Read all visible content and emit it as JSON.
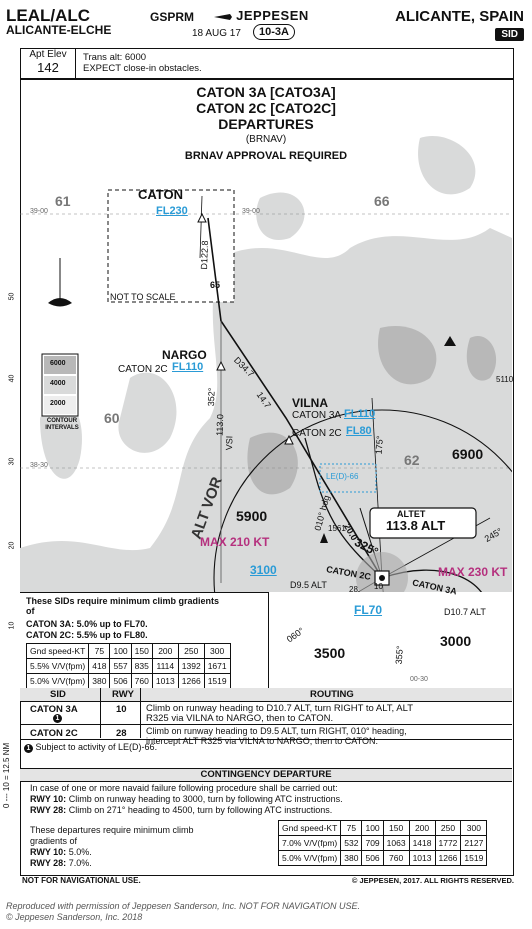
{
  "header": {
    "airport_code": "LEAL/ALC",
    "airport_name": "ALICANTE-ELCHE",
    "ident": "GSPRM",
    "brand": "JEPPESEN",
    "date": "18 AUG 17",
    "chart_index": "10-3A",
    "city": "ALICANTE, SPAIN",
    "chart_type": "SID"
  },
  "top_box": {
    "apt_elev_label": "Apt Elev",
    "apt_elev": "142",
    "trans_alt": "Trans alt: 6000",
    "note": "EXPECT close-in obstacles."
  },
  "title": {
    "line1": "CATON 3A [CATO3A]",
    "line2": "CATON 2C [CATO2C]",
    "line3": "DEPARTURES",
    "line4": "(BRNAV)",
    "line5": "BRNAV APPROVAL REQUIRED"
  },
  "map": {
    "caton": "CATON",
    "caton_fl": "FL230",
    "not_to_scale": "NOT TO SCALE",
    "d122_8": "D122.8",
    "leg65": "65",
    "nargo": "NARGO",
    "nargo_proc": "CATON 2C",
    "nargo_fl": "FL110",
    "r352": "352°",
    "r113": "113.0",
    "vsi": "VSI",
    "d34_7": "D34.7",
    "d14_7": "14.7",
    "vilna": "VILNA",
    "vilna_3a": "CATON 3A",
    "vilna_3a_fl": "FL110",
    "vilna_2c": "CATON 2C",
    "vilna_2c_fl": "FL80",
    "r175": "175°",
    "alt_vor": "ALT VOR",
    "leid": "LE(D)-66",
    "hdg010": "010° hdg",
    "d20": "20.0",
    "r325": "325°",
    "alt_label": "ALTET",
    "alt_freq": "113.8 ALT",
    "max210": "MAX 210 KT",
    "max230": "MAX 230 KT",
    "alt3100": "3100",
    "d95": "D9.5 ALT",
    "catonc2": "CATON 2C",
    "caton3a": "CATON 3A",
    "fl70": "FL70",
    "d107": "D10.7 ALT",
    "r060": "060°",
    "r245": "245°",
    "r355": "355°",
    "rwy10": "10",
    "rwy28": "28",
    "obst1561": "1561",
    "grid_61": "61",
    "grid_66": "66",
    "grid_60": "60",
    "grid_62": "62",
    "elev6900": "6900",
    "elev5900": "5900",
    "elev3000": "3000",
    "elev3500": "3500",
    "peak5110": "5110",
    "lat3900a": "39-00",
    "lat3900b": "39-00",
    "lat3830": "38-30",
    "lon0030": "00-30",
    "legend": [
      "6000",
      "4000",
      "2000"
    ],
    "legend_label": "CONTOUR INTERVALS",
    "lat_ticks": [
      "50",
      "40",
      "30",
      "20",
      "10"
    ]
  },
  "climb": {
    "title_line1": "These SIDs require minimum climb gradients",
    "title_line2": "of",
    "req1": "CATON 3A: 5.0% up to FL70.",
    "req2": "CATON 2C: 5.5% up to FL80.",
    "header": [
      "Gnd speed-KT",
      "75",
      "100",
      "150",
      "200",
      "250",
      "300"
    ],
    "row1": [
      "5.5% V/V(fpm)",
      "418",
      "557",
      "835",
      "1114",
      "1392",
      "1671"
    ],
    "row2": [
      "5.0% V/V(fpm)",
      "380",
      "506",
      "760",
      "1013",
      "1266",
      "1519"
    ]
  },
  "routing": {
    "col_sid": "SID",
    "col_rwy": "RWY",
    "col_routing": "ROUTING",
    "rows": [
      {
        "sid": "CATON 3A",
        "note_mark": "1",
        "rwy": "10",
        "text1": "Climb on runway heading to D10.7 ALT, turn RIGHT to ALT, ALT",
        "text2": "R325 via VILNA to NARGO, then to CATON."
      },
      {
        "sid": "CATON 2C",
        "note_mark": "",
        "rwy": "28",
        "text1": "Climb on runway heading to D9.5 ALT, turn RIGHT, 010° heading,",
        "text2": "intercept ALT R325 via VILNA to NARGO, then to CATON."
      }
    ],
    "footnote": "Subject to activity of LE(D)-66."
  },
  "contingency": {
    "title": "CONTINGENCY DEPARTURE",
    "line1": "In case of one or more navaid failure following procedure shall be carried out:",
    "rwy10_label": "RWY 10:",
    "rwy10": "Climb on runway heading to 3000, turn by following ATC instructions.",
    "rwy28_label": "RWY 28:",
    "rwy28": "Climb on 271° heading to 4500, turn by following ATC instructions.",
    "dep_line1": "These departures require minimum climb",
    "dep_line2": "gradients of",
    "dep_rwy10_label": "RWY 10:",
    "dep_rwy10": "5.0%.",
    "dep_rwy28_label": "RWY 28:",
    "dep_rwy28": "7.0%.",
    "table_header": [
      "Gnd speed-KT",
      "75",
      "100",
      "150",
      "200",
      "250",
      "300"
    ],
    "table_row1": [
      "7.0% V/V(fpm)",
      "532",
      "709",
      "1063",
      "1418",
      "1772",
      "2127"
    ],
    "table_row2": [
      "5.0% V/V(fpm)",
      "380",
      "506",
      "760",
      "1013",
      "1266",
      "1519"
    ]
  },
  "footer": {
    "left": "NOT FOR NAVIGATIONAL USE.",
    "right": "© JEPPESEN, 2017. ALL RIGHTS RESERVED.",
    "repro1": "Reproduced with permission of Jeppesen Sanderson, Inc. NOT FOR NAVIGATION USE.",
    "repro2": "© Jeppesen Sanderson, Inc. 2018",
    "side": "0 --- 10 = 12.5 NM"
  },
  "colors": {
    "terrain": "#d9dada",
    "terrain_dark": "#b8b8b8",
    "water": "#ffffff",
    "cyan_text": "#2a9bd6",
    "magenta_text": "#b5307e",
    "route": "#111111"
  }
}
